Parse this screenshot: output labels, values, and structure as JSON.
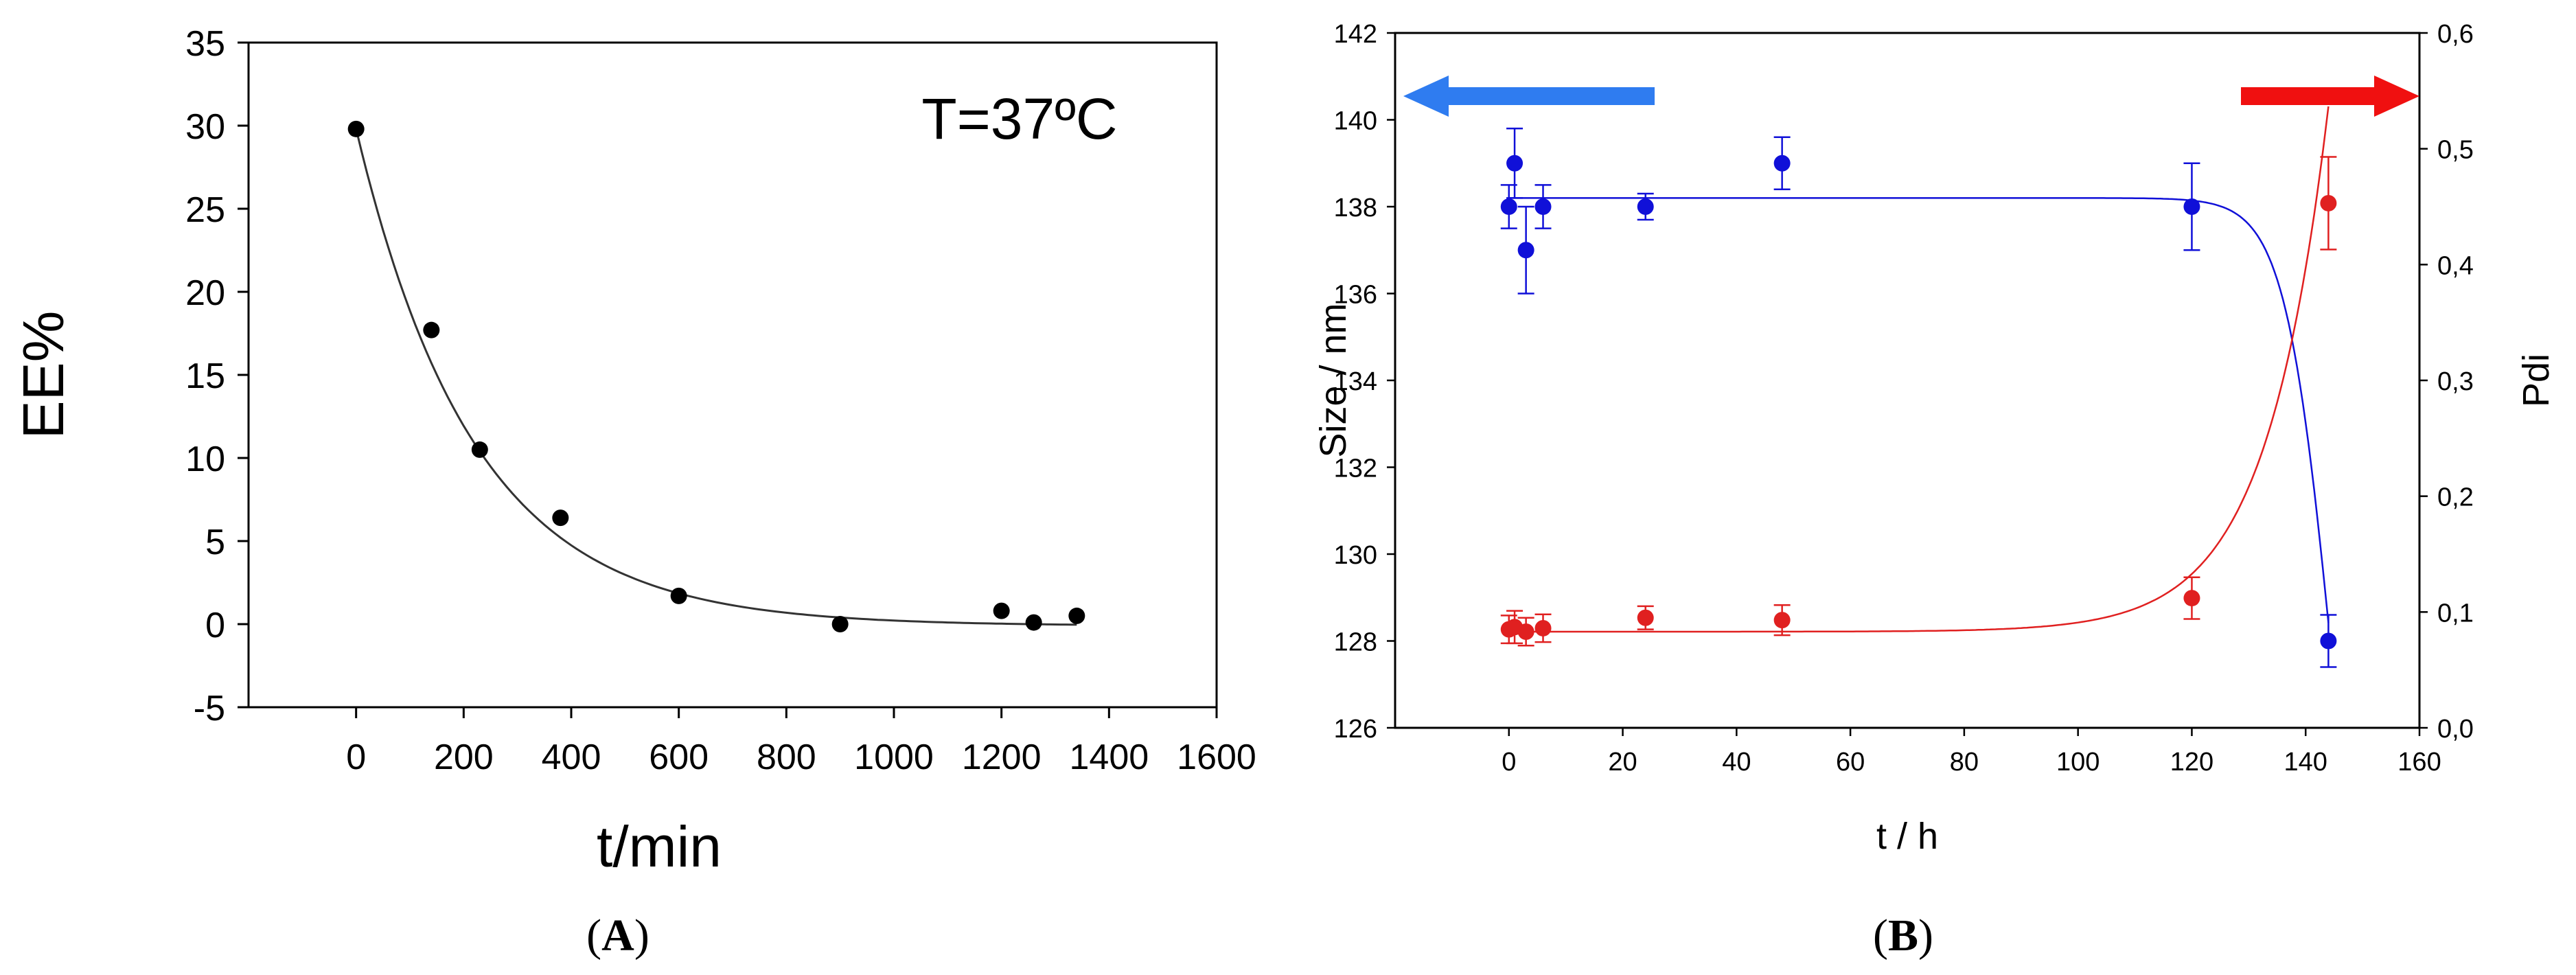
{
  "panels": {
    "a": {
      "label_open": "(",
      "label_letter": "A",
      "label_close": ")"
    },
    "b": {
      "label_open": "(",
      "label_letter": "B",
      "label_close": ")"
    }
  },
  "chart_data": [
    {
      "type": "scatter",
      "annotation": "T=37ºC",
      "xlabel": "t/min",
      "ylabel": "EE%",
      "xlim": [
        -200,
        1600
      ],
      "ylim": [
        -5,
        35
      ],
      "xticks": [
        "0",
        "200",
        "400",
        "600",
        "800",
        "1000",
        "1200",
        "1400",
        "1600"
      ],
      "yticks": [
        "-5",
        "0",
        "5",
        "10",
        "15",
        "20",
        "25",
        "30",
        "35"
      ],
      "points": {
        "x": [
          0,
          140,
          230,
          380,
          600,
          900,
          1200,
          1260,
          1340
        ],
        "y": [
          29.8,
          17.7,
          10.5,
          6.4,
          1.7,
          0.0,
          0.8,
          0.1,
          0.5
        ]
      },
      "fit": {
        "kind": "exponential_decay",
        "y0": -0.1,
        "a": 29.9,
        "k": 0.00455
      },
      "colors": {
        "marker": "#000000",
        "line": "#333333"
      }
    },
    {
      "type": "scatter",
      "xlabel": "t / h",
      "ylabel": "Size / nm",
      "y2label": "Pdi",
      "xlim": [
        -20,
        160
      ],
      "ylim": [
        126,
        142
      ],
      "y2lim": [
        0.0,
        0.6
      ],
      "xticks": [
        "0",
        "20",
        "40",
        "60",
        "80",
        "100",
        "120",
        "140",
        "160"
      ],
      "yticks": [
        "126",
        "128",
        "130",
        "132",
        "134",
        "136",
        "138",
        "140",
        "142"
      ],
      "y2ticks": [
        "0,0",
        "0,1",
        "0,2",
        "0,3",
        "0,4",
        "0,5",
        "0,6"
      ],
      "series": [
        {
          "axis": "left",
          "color": "#1010d8",
          "x": [
            0,
            1,
            3,
            6,
            24,
            48,
            120,
            144
          ],
          "y": [
            138,
            139,
            137,
            138,
            138,
            139,
            138,
            128
          ],
          "err": [
            0.5,
            0.8,
            1.0,
            0.5,
            0.3,
            0.6,
            1.0,
            0.6
          ],
          "fit": {
            "kind": "sigmoid_decay",
            "top": 138.2,
            "bottom": 116,
            "mid": 145,
            "scale": 4.2
          }
        },
        {
          "axis": "right",
          "color": "#e02020",
          "x": [
            0,
            1,
            3,
            6,
            24,
            48,
            120,
            144
          ],
          "y": [
            0.085,
            0.087,
            0.083,
            0.086,
            0.095,
            0.093,
            0.112,
            0.453
          ],
          "err": [
            0.012,
            0.014,
            0.012,
            0.012,
            0.01,
            0.013,
            0.018,
            0.04
          ],
          "fit": {
            "kind": "exponential_growth",
            "base": 0.083,
            "a": 8e-07,
            "k": 0.092
          }
        }
      ],
      "arrows": [
        {
          "direction": "left",
          "color": "#2f7cf0"
        },
        {
          "direction": "right",
          "color": "#f01010"
        }
      ]
    }
  ]
}
